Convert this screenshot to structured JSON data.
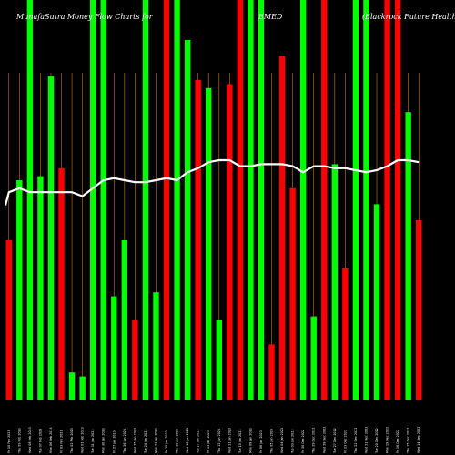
{
  "chart_data": {
    "type": "bar",
    "title_parts": [
      "MunafaSutra  Money Flow  Charts for",
      "BMED",
      "(Blackrock  Future  Health  ETF)"
    ],
    "xlabel": "",
    "ylabel": "",
    "grid": false,
    "legend": "none",
    "colors": {
      "up": "#00ff00",
      "down": "#ff0000",
      "line": "#ffffff",
      "background": "#000000",
      "divider": "#cc7a00"
    },
    "categories": [
      "Fri 10 Feb 2023",
      "Thu 09 Feb 2023",
      "Wed 08 Feb 2023",
      "Tue 07 Feb 2023",
      "Mon 06 Feb 2023",
      "Fri 03 Feb 2023",
      "Thu 02 Feb 2023",
      "Wed 01 Feb 2023",
      "Tue 31 Jan 2023",
      "Mon 30 Jan 2023",
      "Fri 27 Jan 2023",
      "Thu 26 Jan 2023",
      "Wed 25 Jan 2023",
      "Tue 24 Jan 2023",
      "Mon 23 Jan 2023",
      "Fri 20 Jan 2023",
      "Thu 19 Jan 2023",
      "Wed 18 Jan 2023",
      "Tue 17 Jan 2023",
      "Fri 13 Jan 2023",
      "Thu 12 Jan 2023",
      "Wed 11 Jan 2023",
      "Tue 10 Jan 2023",
      "Mon 09 Jan 2023",
      "Fri 06 Jan 2023",
      "Thu 05 Jan 2023",
      "Wed 04 Jan 2023",
      "Tue 03 Jan 2023",
      "Fri 30 Dec 2022",
      "Thu 29 Dec 2022",
      "Wed 28 Dec 2022",
      "Tue 27 Dec 2022",
      "Fri 23 Dec 2022",
      "Thu 22 Dec 2022",
      "Wed 21 Dec 2022",
      "Tue 20 Dec 2022",
      "Mon 19 Dec 2022",
      "Fri 16 Dec 2022",
      "Thu 15 Dec 2022",
      "Wed 14 Dec 2022"
    ],
    "bars": [
      {
        "value": 0.4,
        "dir": "down"
      },
      {
        "value": 0.55,
        "dir": "up"
      },
      {
        "value": 1.0,
        "dir": "up"
      },
      {
        "value": 0.56,
        "dir": "up"
      },
      {
        "value": 0.81,
        "dir": "up"
      },
      {
        "value": 0.58,
        "dir": "down"
      },
      {
        "value": 0.07,
        "dir": "up"
      },
      {
        "value": 0.06,
        "dir": "up"
      },
      {
        "value": 1.0,
        "dir": "up"
      },
      {
        "value": 1.0,
        "dir": "up"
      },
      {
        "value": 0.26,
        "dir": "up"
      },
      {
        "value": 0.4,
        "dir": "up"
      },
      {
        "value": 0.2,
        "dir": "down"
      },
      {
        "value": 1.0,
        "dir": "up"
      },
      {
        "value": 0.27,
        "dir": "up"
      },
      {
        "value": 1.0,
        "dir": "down"
      },
      {
        "value": 1.0,
        "dir": "up"
      },
      {
        "value": 0.9,
        "dir": "up"
      },
      {
        "value": 0.8,
        "dir": "down"
      },
      {
        "value": 0.78,
        "dir": "up"
      },
      {
        "value": 0.2,
        "dir": "up"
      },
      {
        "value": 0.79,
        "dir": "down"
      },
      {
        "value": 1.0,
        "dir": "down"
      },
      {
        "value": 1.0,
        "dir": "up"
      },
      {
        "value": 1.0,
        "dir": "up"
      },
      {
        "value": 0.14,
        "dir": "down"
      },
      {
        "value": 0.86,
        "dir": "down"
      },
      {
        "value": 0.53,
        "dir": "down"
      },
      {
        "value": 1.0,
        "dir": "up"
      },
      {
        "value": 0.21,
        "dir": "up"
      },
      {
        "value": 1.0,
        "dir": "down"
      },
      {
        "value": 0.59,
        "dir": "up"
      },
      {
        "value": 0.33,
        "dir": "down"
      },
      {
        "value": 1.0,
        "dir": "up"
      },
      {
        "value": 1.0,
        "dir": "up"
      },
      {
        "value": 0.49,
        "dir": "up"
      },
      {
        "value": 1.0,
        "dir": "down"
      },
      {
        "value": 1.0,
        "dir": "down"
      },
      {
        "value": 0.72,
        "dir": "up"
      },
      {
        "value": 0.45,
        "dir": "down"
      }
    ],
    "line_values": [
      0.52,
      0.53,
      0.52,
      0.52,
      0.52,
      0.52,
      0.52,
      0.51,
      0.53,
      0.55,
      0.555,
      0.55,
      0.545,
      0.545,
      0.55,
      0.555,
      0.55,
      0.57,
      0.58,
      0.595,
      0.6,
      0.6,
      0.585,
      0.585,
      0.59,
      0.59,
      0.59,
      0.585,
      0.57,
      0.585,
      0.585,
      0.58,
      0.58,
      0.575,
      0.57,
      0.575,
      0.585,
      0.6,
      0.6,
      0.595
    ],
    "line_start": 0.51,
    "ylim": [
      0,
      1
    ]
  }
}
